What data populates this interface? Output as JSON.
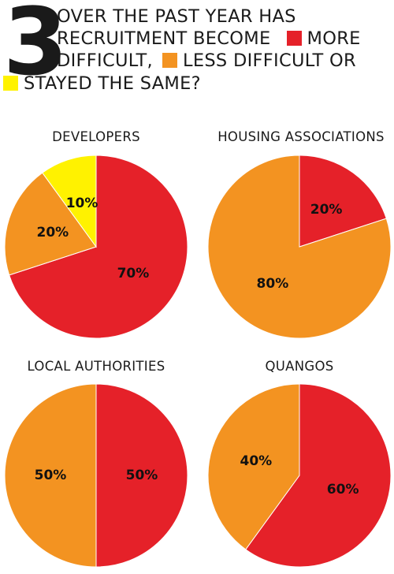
{
  "header": {
    "number": "3",
    "line1": "OVER THE PAST YEAR HAS",
    "line2": "RECRUITMENT BECOME",
    "more": "MORE",
    "line3": "DIFFICULT,",
    "less": "LESS DIFFICULT OR",
    "same": "STAYED THE SAME?"
  },
  "colors": {
    "more_difficult": "#e52129",
    "less_difficult": "#f39321",
    "stayed_same": "#fff200"
  },
  "chart_data": [
    {
      "type": "pie",
      "title": "DEVELOPERS",
      "slices": [
        {
          "category": "MORE DIFFICULT",
          "value": 70,
          "label": "70%"
        },
        {
          "category": "LESS DIFFICULT",
          "value": 20,
          "label": "20%"
        },
        {
          "category": "STAYED THE SAME",
          "value": 10,
          "label": "10%"
        }
      ]
    },
    {
      "type": "pie",
      "title": "HOUSING ASSOCIATIONS",
      "slices": [
        {
          "category": "MORE DIFFICULT",
          "value": 20,
          "label": "20%"
        },
        {
          "category": "LESS DIFFICULT",
          "value": 80,
          "label": "80%"
        }
      ]
    },
    {
      "type": "pie",
      "title": "LOCAL AUTHORITIES",
      "slices": [
        {
          "category": "MORE DIFFICULT",
          "value": 50,
          "label": "50%"
        },
        {
          "category": "LESS DIFFICULT",
          "value": 50,
          "label": "50%"
        }
      ]
    },
    {
      "type": "pie",
      "title": "QUANGOS",
      "slices": [
        {
          "category": "MORE DIFFICULT",
          "value": 60,
          "label": "60%"
        },
        {
          "category": "LESS DIFFICULT",
          "value": 40,
          "label": "40%"
        }
      ]
    }
  ]
}
